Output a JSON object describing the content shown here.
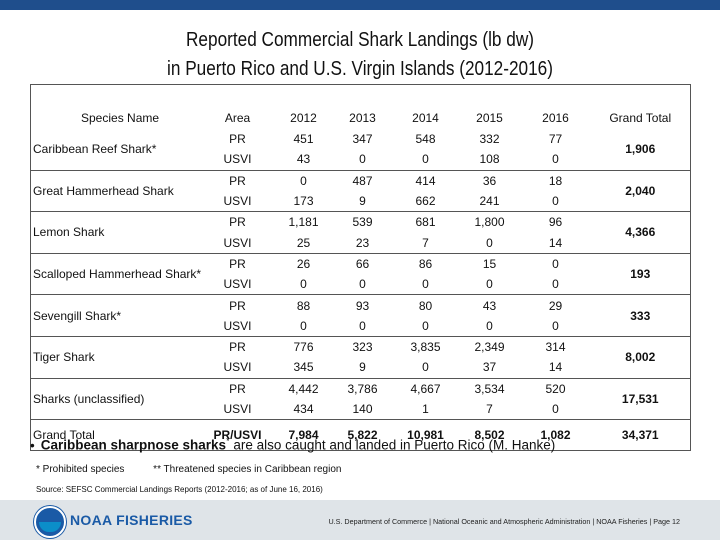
{
  "title": {
    "line1": "Reported Commercial Shark Landings (lb dw)",
    "line2": "in Puerto Rico and U.S. Virgin Islands (2012-2016)"
  },
  "table": {
    "headers": {
      "species": "Species Name",
      "area": "Area",
      "y2012": "2012",
      "y2013": "2013",
      "y2014": "2014",
      "y2015": "2015",
      "y2016": "2016",
      "grand_total": "Grand Total"
    },
    "groups": [
      {
        "species": "Caribbean Reef Shark*",
        "grand_total": "1,906",
        "rows": [
          {
            "area": "PR",
            "v2012": "451",
            "v2013": "347",
            "v2014": "548",
            "v2015": "332",
            "v2016": "77"
          },
          {
            "area": "USVI",
            "v2012": "43",
            "v2013": "0",
            "v2014": "0",
            "v2015": "108",
            "v2016": "0"
          }
        ]
      },
      {
        "species": "Great Hammerhead Shark",
        "grand_total": "2,040",
        "rows": [
          {
            "area": "PR",
            "v2012": "0",
            "v2013": "487",
            "v2014": "414",
            "v2015": "36",
            "v2016": "18"
          },
          {
            "area": "USVI",
            "v2012": "173",
            "v2013": "9",
            "v2014": "662",
            "v2015": "241",
            "v2016": "0"
          }
        ]
      },
      {
        "species": "Lemon Shark",
        "grand_total": "4,366",
        "rows": [
          {
            "area": "PR",
            "v2012": "1,181",
            "v2013": "539",
            "v2014": "681",
            "v2015": "1,800",
            "v2016": "96"
          },
          {
            "area": "USVI",
            "v2012": "25",
            "v2013": "23",
            "v2014": "7",
            "v2015": "0",
            "v2016": "14"
          }
        ]
      },
      {
        "species": "Scalloped Hammerhead Shark**",
        "grand_total": "193",
        "rows": [
          {
            "area": "PR",
            "v2012": "26",
            "v2013": "66",
            "v2014": "86",
            "v2015": "15",
            "v2016": "0"
          },
          {
            "area": "USVI",
            "v2012": "0",
            "v2013": "0",
            "v2014": "0",
            "v2015": "0",
            "v2016": "0"
          }
        ]
      },
      {
        "species": "Sevengill Shark*",
        "grand_total": "333",
        "rows": [
          {
            "area": "PR",
            "v2012": "88",
            "v2013": "93",
            "v2014": "80",
            "v2015": "43",
            "v2016": "29"
          },
          {
            "area": "USVI",
            "v2012": "0",
            "v2013": "0",
            "v2014": "0",
            "v2015": "0",
            "v2016": "0"
          }
        ]
      },
      {
        "species": "Tiger Shark",
        "grand_total": "8,002",
        "rows": [
          {
            "area": "PR",
            "v2012": "776",
            "v2013": "323",
            "v2014": "3,835",
            "v2015": "2,349",
            "v2016": "314"
          },
          {
            "area": "USVI",
            "v2012": "345",
            "v2013": "9",
            "v2014": "0",
            "v2015": "37",
            "v2016": "14"
          }
        ]
      },
      {
        "species": "Sharks (unclassified)",
        "grand_total": "17,531",
        "rows": [
          {
            "area": "PR",
            "v2012": "4,442",
            "v2013": "3,786",
            "v2014": "4,667",
            "v2015": "3,534",
            "v2016": "520"
          },
          {
            "area": "USVI",
            "v2012": "434",
            "v2013": "140",
            "v2014": "1",
            "v2015": "7",
            "v2016": "0"
          }
        ]
      }
    ],
    "total": {
      "species": "Grand Total",
      "area": "PR/USVI",
      "v2012": "7,984",
      "v2013": "5,822",
      "v2014": "10,981",
      "v2015": "8,502",
      "v2016": "1,082",
      "grand_total": "34,371"
    }
  },
  "note": {
    "bullet": "•",
    "bold_text": "Caribbean sharpnose sharks",
    "superscript": "*",
    "rest": " are also caught and landed in Puerto Rico (M. Hanke)"
  },
  "footnotes": {
    "prohibited": "* Prohibited species",
    "threatened": "** Threatened species in Caribbean region"
  },
  "source": "Source: SEFSC Commercial Landings Reports (2012-2016; as of June 16, 2016)",
  "footer": {
    "logo_text": "NOAA FISHERIES",
    "text": "U.S. Department of Commerce | National Oceanic and Atmospheric Administration | NOAA Fisheries | Page 12"
  },
  "colors": {
    "top_bar": "#1f4e8c",
    "logo_blue": "#1a5aa6",
    "footer_bg": "#dfe4e8"
  }
}
